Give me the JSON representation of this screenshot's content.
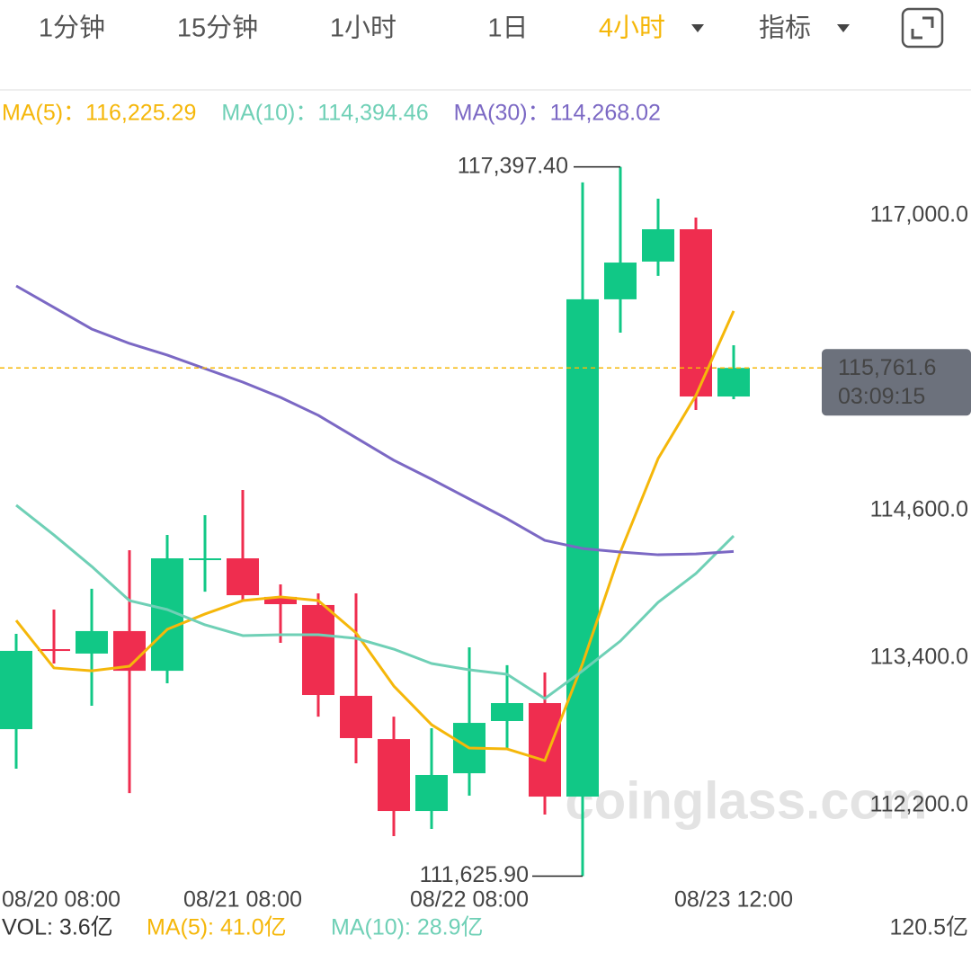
{
  "tabs": [
    "1分钟",
    "15分钟",
    "1小时",
    "1日",
    "4小时",
    "指标"
  ],
  "active_tab": 4,
  "chart_data": {
    "type": "candlestick",
    "watermark": "coinglass.com",
    "categories": [
      "08/20 08:00",
      null,
      null,
      null,
      null,
      null,
      "08/21 08:00",
      null,
      null,
      null,
      null,
      null,
      "08/22 08:00",
      null,
      null,
      null,
      null,
      null,
      null,
      "08/23 12:00"
    ],
    "open": [
      112822,
      113473,
      113437,
      113620,
      113297,
      114198,
      114212,
      113898,
      113832,
      113093,
      112741,
      112156,
      112463,
      112888,
      113034,
      112273,
      116320,
      116627,
      116890,
      115529
    ],
    "high": [
      113598,
      113795,
      113964,
      114278,
      114402,
      114563,
      114768,
      114000,
      113927,
      113927,
      112924,
      112829,
      113488,
      113342,
      113283,
      117271,
      117397.4,
      117139,
      116985,
      115946
    ],
    "low": [
      112500,
      113356,
      113012,
      112302,
      113195,
      113941,
      113868,
      113524,
      112924,
      112544,
      111951,
      112010,
      112281,
      112668,
      112127,
      111625.9,
      116049,
      116510,
      115419,
      115507
    ],
    "close": [
      113459,
      113459,
      113620,
      113297,
      114212,
      114212,
      113912,
      113839,
      113100,
      112749,
      112156,
      112449,
      112873,
      113034,
      112273,
      116320,
      116619,
      116890,
      115529,
      115761.6
    ],
    "up_color": "#11c886",
    "down_color": "#ef2d4f",
    "high_label": "117,397.40",
    "low_label": "111,625.90",
    "legend_separator": "：",
    "series": [
      {
        "name": "MA(5)",
        "color": "#f5b70a",
        "values": [
          113707,
          113320,
          113297,
          113334,
          113634,
          113759,
          113868,
          113898,
          113868,
          113605,
          113173,
          112858,
          112668,
          112661,
          112566,
          113356,
          114263,
          115024,
          115537,
          116225.29
        ],
        "value_labels": [
          null,
          null,
          null,
          null,
          null,
          null,
          null,
          null,
          null,
          null,
          null,
          null,
          null,
          null,
          null,
          null,
          null,
          null,
          null,
          "116,225.29"
        ]
      },
      {
        "name": "MA(10)",
        "color": "#6fd0b6",
        "values": [
          114644,
          114402,
          114146,
          113868,
          113795,
          113671,
          113583,
          113590,
          113590,
          113561,
          113473,
          113356,
          113305,
          113268,
          113071,
          113297,
          113539,
          113854,
          114088,
          114394.46
        ],
        "value_labels": [
          null,
          null,
          null,
          null,
          null,
          null,
          null,
          null,
          null,
          null,
          null,
          null,
          null,
          null,
          null,
          null,
          null,
          null,
          null,
          "114,394.46"
        ]
      },
      {
        "name": "MA(30)",
        "color": "#7b68c4",
        "values": [
          116429,
          116254,
          116078,
          115961,
          115866,
          115756,
          115646,
          115522,
          115376,
          115193,
          115010,
          114856,
          114695,
          114534,
          114358,
          114292,
          114263,
          114241,
          114248,
          114268.02
        ],
        "value_labels": [
          null,
          null,
          null,
          null,
          null,
          null,
          null,
          null,
          null,
          null,
          null,
          null,
          null,
          null,
          null,
          null,
          null,
          null,
          null,
          "114,268.02"
        ]
      }
    ],
    "last_price": {
      "value": 115761.6,
      "label": "115,761.6",
      "countdown": "03:09:15"
    },
    "ylim": [
      111549,
      118024
    ],
    "yticks": [
      {
        "value": 117000,
        "label": "117,000.0"
      },
      {
        "value": 114600,
        "label": "114,600.0"
      },
      {
        "value": 113400,
        "label": "113,400.0"
      },
      {
        "value": 112200,
        "label": "112,200.0"
      }
    ],
    "grid": false,
    "volume": {
      "label": "VOL: 3.6亿",
      "ma5": "MA(5): 41.0亿",
      "ma10": "MA(10): 28.9亿",
      "axis_max": "120.5亿"
    }
  }
}
